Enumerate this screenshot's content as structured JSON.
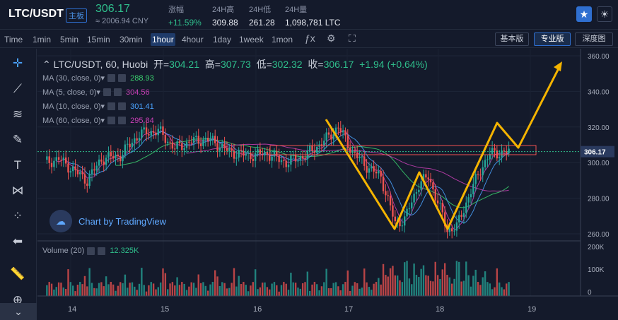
{
  "header": {
    "pair": "LTC/USDT",
    "badge": "主板",
    "last_price": "306.17",
    "cny_price": "≈ 2006.94 CNY",
    "stats": [
      {
        "label": "涨幅",
        "value": "+11.59%",
        "up": true
      },
      {
        "label": "24H高",
        "value": "309.88",
        "up": false
      },
      {
        "label": "24H低",
        "value": "261.28",
        "up": false
      },
      {
        "label": "24H量",
        "value": "1,098,781 LTC",
        "up": false
      }
    ],
    "icons": [
      "star-icon",
      "sun-icon"
    ]
  },
  "toolbar": {
    "intervals": [
      "Time",
      "1min",
      "5min",
      "15min",
      "30min",
      "1hour",
      "4hour",
      "1day",
      "1week",
      "1mon"
    ],
    "active_interval": "1hour",
    "views": [
      "基本版",
      "专业版",
      "深度图"
    ],
    "active_view": "专业版"
  },
  "left_tools": [
    "crosshair-icon",
    "trendline-icon",
    "fib-icon",
    "brush-icon",
    "text-icon",
    "pattern-icon",
    "measure-icon",
    "back-arrow-icon",
    "ruler-icon",
    "zoom-icon"
  ],
  "legend": {
    "title": "LTC/USDT, 60, Huobi",
    "open_label": "开=",
    "open": "304.21",
    "high_label": "高=",
    "high": "307.73",
    "low_label": "低=",
    "low": "302.32",
    "close_label": "收=",
    "close": "306.17",
    "change": "+1.94 (+0.64%)",
    "ma": [
      {
        "label": "MA (30, close, 0)",
        "value": "288.93",
        "color": "#3bd16f"
      },
      {
        "label": "MA (5, close, 0)",
        "value": "304.56",
        "color": "#c83fb5"
      },
      {
        "label": "MA (10, close, 0)",
        "value": "301.41",
        "color": "#4aa3ff"
      },
      {
        "label": "MA (60, close, 0)",
        "value": "295.84",
        "color": "#c83fb5"
      }
    ],
    "volume_label": "Volume (20)",
    "volume_value": "12.325K"
  },
  "watermark": "Chart by TradingView",
  "chart_data": {
    "type": "candlestick",
    "price_axis": {
      "ticks": [
        260,
        280,
        300,
        320,
        340,
        360
      ],
      "range": [
        255,
        366
      ]
    },
    "volume_axis": {
      "ticks": [
        "200K",
        "100K",
        "0"
      ]
    },
    "time_labels": [
      "14",
      "15",
      "16",
      "17",
      "18",
      "19"
    ],
    "last_price_marker": "306.17",
    "colors": {
      "up": "#26a69a",
      "down": "#ef5350",
      "annotation": "#f5b400",
      "box": "#ef5350"
    }
  }
}
